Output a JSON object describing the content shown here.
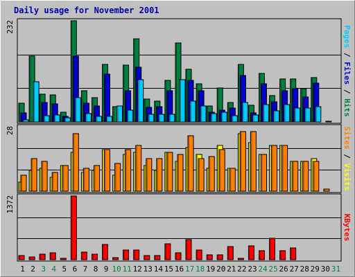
{
  "chart_data": {
    "type": "bar",
    "title": "Daily usage for November 2001",
    "grid": true,
    "x": [
      "1",
      "2",
      "3",
      "4",
      "5",
      "6",
      "7",
      "8",
      "9",
      "10",
      "11",
      "12",
      "13",
      "14",
      "15",
      "16",
      "17",
      "18",
      "19",
      "20",
      "21",
      "22",
      "23",
      "24",
      "25",
      "26",
      "27",
      "28",
      "29",
      "30",
      "31"
    ],
    "weekend_days": [
      "3",
      "4",
      "10",
      "11",
      "17",
      "18",
      "24",
      "25",
      "31"
    ],
    "panels": [
      {
        "id": "top",
        "ytick_max": "232",
        "ylim": [
          0,
          232
        ],
        "right_labels": [
          {
            "text": "Pages",
            "color": "#00ccff"
          },
          {
            "text": " / ",
            "color": "#000000"
          },
          {
            "text": "Files",
            "color": "#0000cc"
          },
          {
            "text": " / ",
            "color": "#000000"
          },
          {
            "text": "Hits",
            "color": "#008040"
          }
        ],
        "series": [
          {
            "name": "Hits",
            "color": "#008040",
            "values": [
              43,
              151,
              64,
              62,
              22,
              232,
              72,
              55,
              132,
              35,
              130,
              190,
              52,
              48,
              95,
              181,
              120,
              87,
              37,
              78,
              45,
              132,
              38,
              112,
              60,
              99,
              99,
              76,
              102,
              0,
              0
            ]
          },
          {
            "name": "Files",
            "color": "#0000cc",
            "values": [
              21,
              0,
              44,
              42,
              12,
              151,
              43,
              37,
              109,
              0,
              72,
              126,
              34,
              35,
              72,
              0,
              96,
              72,
              22,
              27,
              32,
              106,
              21,
              87,
              46,
              72,
              77,
              57,
              89,
              0,
              0
            ]
          },
          {
            "name": "Pages",
            "color": "#00ccff",
            "values": [
              4,
              92,
              14,
              16,
              9,
              56,
              19,
              13,
              13,
              36,
              27,
              97,
              18,
              17,
              18,
              97,
              47,
              37,
              19,
              23,
              15,
              45,
              16,
              39,
              26,
              39,
              32,
              31,
              35,
              2,
              0
            ]
          }
        ]
      },
      {
        "id": "middle",
        "ytick_max": "28",
        "ylim": [
          0,
          28
        ],
        "right_labels": [
          {
            "text": "Sites",
            "color": "#ff8000"
          },
          {
            "text": " / ",
            "color": "#000000"
          },
          {
            "text": "Visits",
            "color": "#ffff00"
          }
        ],
        "series": [
          {
            "name": "Visits",
            "color": "#ffff00",
            "values": [
              4,
              9,
              10,
              6,
              11,
              17,
              8,
              9,
              18,
              7,
              16,
              17,
              11,
              9,
              17,
              13,
              19,
              16,
              10,
              20,
              10,
              25,
              21,
              16,
              20,
              20,
              13,
              13,
              14,
              0,
              0
            ]
          },
          {
            "name": "Sites",
            "color": "#ff8000",
            "values": [
              7,
              14,
              13,
              8,
              11,
              25,
              10,
              11,
              18,
              12,
              18,
              20,
              14,
              14,
              17,
              16,
              24,
              14,
              15,
              18,
              10,
              26,
              26,
              16,
              20,
              20,
              13,
              13,
              13,
              1,
              0
            ]
          }
        ]
      },
      {
        "id": "bottom",
        "ytick_max": "1372",
        "ylim": [
          0,
          1372
        ],
        "right_labels": [
          {
            "text": "KBytes",
            "color": "#ff0000"
          }
        ],
        "series": [
          {
            "name": "KBytes",
            "color": "#ff0000",
            "values": [
              84,
              63,
              122,
              150,
              28,
              1372,
              158,
              121,
              329,
              44,
              204,
              208,
              95,
              95,
              339,
              146,
              427,
              204,
              103,
              103,
              279,
              35,
              292,
              195,
              467,
              197,
              253,
              0,
              0,
              0,
              0
            ]
          }
        ]
      }
    ]
  }
}
